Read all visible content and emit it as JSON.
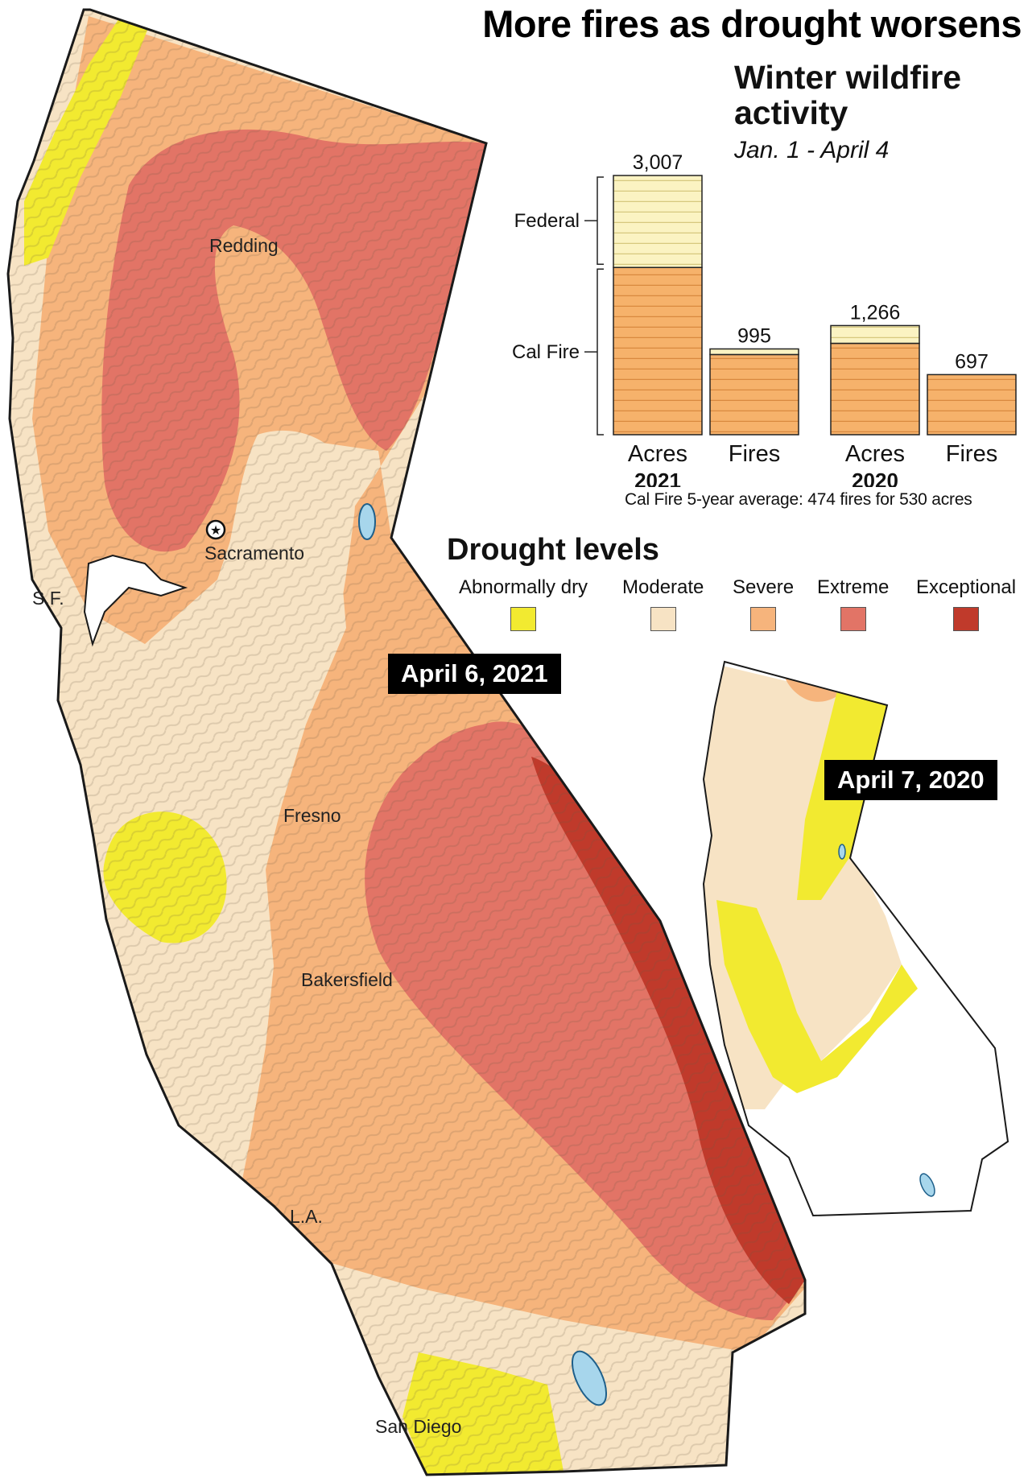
{
  "title": "More fires as drought worsens",
  "chart_title": "Winter wildfire activity",
  "chart_subtitle": "Jan. 1 - April 4",
  "footnote": "Cal Fire 5-year average: 474 fires for 530 acres",
  "legend": {
    "title": "Drought levels",
    "items": [
      {
        "label": "Abnormally dry",
        "color": "#f2ea30"
      },
      {
        "label": "Moderate",
        "color": "#f7e3c4"
      },
      {
        "label": "Severe",
        "color": "#f6b47c"
      },
      {
        "label": "Extreme",
        "color": "#e27466"
      },
      {
        "label": "Exceptional",
        "color": "#c03a2b"
      }
    ]
  },
  "maps": {
    "main_date": "April 6, 2021",
    "inset_date": "April 7, 2020",
    "cities": [
      "Redding",
      "Sacramento",
      "S.F.",
      "Fresno",
      "Bakersfield",
      "L.A.",
      "San Diego"
    ]
  },
  "colors": {
    "federal": "#fbf3c2",
    "cal_fire": "#f6b26b",
    "stripe": "#d9893f"
  },
  "chart_data": {
    "type": "bar",
    "title": "Winter wildfire activity",
    "subtitle": "Jan. 1 - April 4",
    "groups": [
      {
        "year": "2021",
        "bars": [
          {
            "category": "Acres",
            "total": 3007,
            "total_label": "3,007",
            "cal_fire": 1940,
            "federal": 1067
          },
          {
            "category": "Fires",
            "total": 995,
            "total_label": "995",
            "cal_fire": 930,
            "federal": 65
          }
        ]
      },
      {
        "year": "2020",
        "bars": [
          {
            "category": "Acres",
            "total": 1266,
            "total_label": "1,266",
            "cal_fire": 1060,
            "federal": 206
          },
          {
            "category": "Fires",
            "total": 697,
            "total_label": "697",
            "cal_fire": 697,
            "federal": 0
          }
        ]
      }
    ],
    "series": [
      {
        "name": "Federal"
      },
      {
        "name": "Cal Fire"
      }
    ],
    "ylim": [
      0,
      3007
    ]
  }
}
